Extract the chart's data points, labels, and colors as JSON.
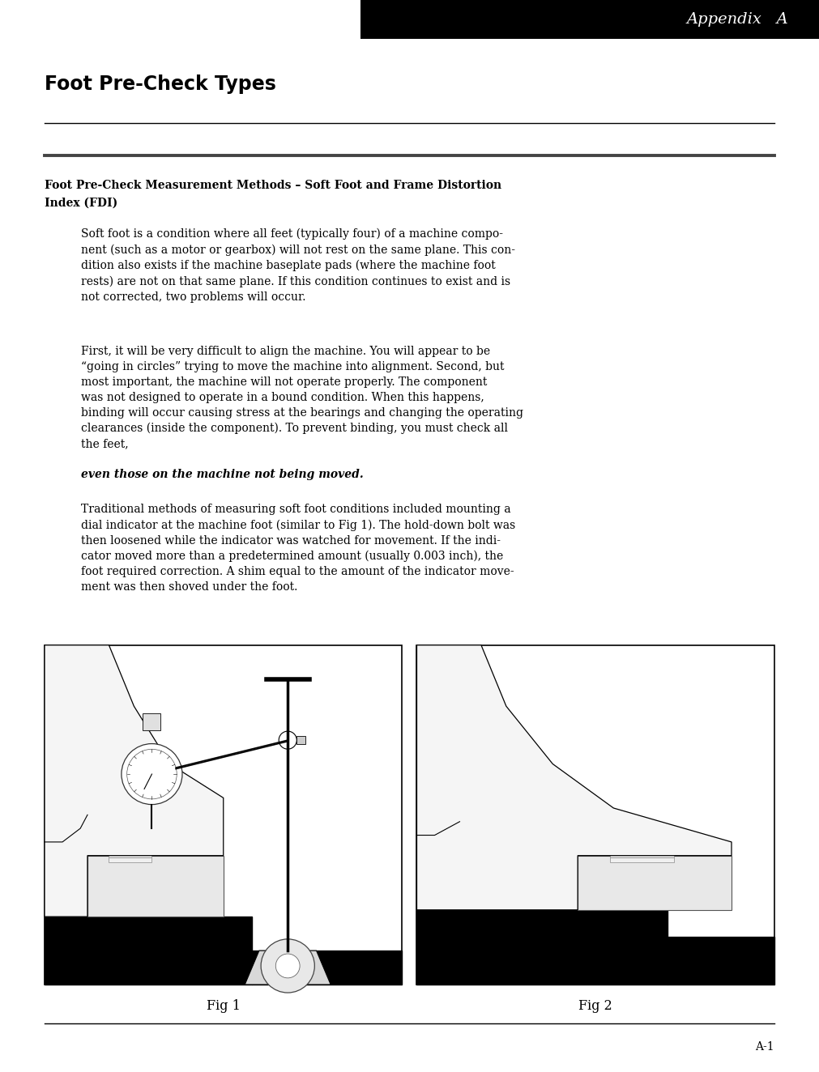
{
  "page_width": 10.11,
  "page_height": 13.24,
  "background_color": "#ffffff",
  "header_bg_color": "#000000",
  "header_text": "Appendix   A",
  "header_text_color": "#ffffff",
  "section_title": "Foot Pre-Check Types",
  "subsection_title_line1": "Foot Pre-Check Measurement Methods – Soft Foot and Frame Distortion",
  "subsection_title_line2": "Index (FDI)",
  "paragraph1": "Soft foot is a condition where all feet (typically four) of a machine compo-\nnent (such as a motor or gearbox) will not rest on the same plane. This con-\ndition also exists if the machine baseplate pads (where the machine foot\nrests) are not on that same plane. If this condition continues to exist and is\nnot corrected, two problems will occur.",
  "paragraph2": "First, it will be very difficult to align the machine. You will appear to be\n“going in circles” trying to move the machine into alignment. Second, but\nmost important, the machine will not operate properly. The component\nwas not designed to operate in a bound condition. When this happens,\nbinding will occur causing stress at the bearings and changing the operating\nclearances (inside the component). To prevent binding, you must check all\nthe feet, ",
  "paragraph2_italic": "even those on the machine not being moved.",
  "paragraph3": "Traditional methods of measuring soft foot conditions included mounting a\ndial indicator at the machine foot (similar to Fig 1). The hold-down bolt was\nthen loosened while the indicator was watched for movement. If the indi-\ncator moved more than a predetermined amount (usually 0.003 inch), the\nfoot required correction. A shim equal to the amount of the indicator move-\nment was then shoved under the foot.",
  "fig1_label": "Fig 1",
  "fig2_label": "Fig 2",
  "footer_page": "A-1",
  "ml": 0.55,
  "mr": 0.55,
  "indent": 1.0
}
